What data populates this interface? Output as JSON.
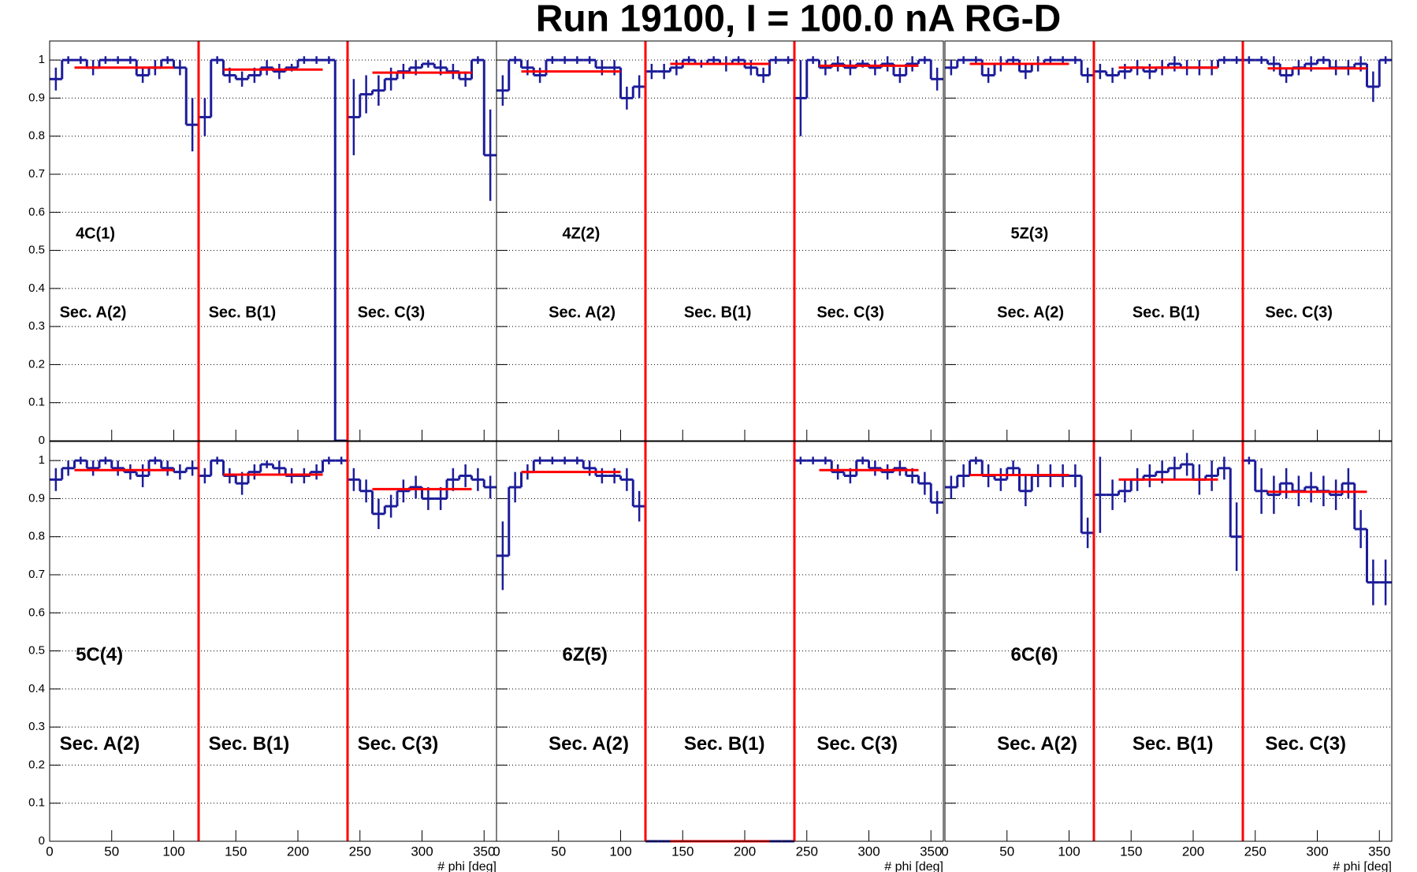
{
  "title": "Run 19100, I = 100.0 nA  RG-D",
  "chart_data": [
    {
      "type": "histogram",
      "label": "4C(1)",
      "sectors": [
        "Sec. A(2)",
        "Sec. B(1)",
        "Sec. C(3)"
      ],
      "bins": [
        0,
        10,
        20,
        30,
        40,
        50,
        60,
        70,
        80,
        90,
        100,
        110,
        120,
        130,
        140,
        150,
        160,
        170,
        180,
        190,
        200,
        210,
        220,
        230,
        240,
        250,
        260,
        270,
        280,
        290,
        300,
        310,
        320,
        330,
        340,
        350,
        360
      ],
      "values": [
        0.95,
        1,
        1,
        0.98,
        1,
        1,
        1,
        0.96,
        0.98,
        1,
        0.98,
        0.83,
        0.85,
        1,
        0.96,
        0.95,
        0.96,
        0.98,
        0.97,
        0.98,
        1,
        1,
        1,
        0,
        0.85,
        0.91,
        0.92,
        0.95,
        0.97,
        0.98,
        0.99,
        0.98,
        0.97,
        0.95,
        1,
        0.75
      ],
      "errors": [
        0.03,
        0.01,
        0.01,
        0.02,
        0.01,
        0.01,
        0.01,
        0.02,
        0.02,
        0.01,
        0.02,
        0.07,
        0.05,
        0.01,
        0.02,
        0.02,
        0.02,
        0.02,
        0.02,
        0.01,
        0.01,
        0.01,
        0.01,
        0,
        0.1,
        0.05,
        0.04,
        0.03,
        0.02,
        0.02,
        0.01,
        0.02,
        0.02,
        0.02,
        0.01,
        0.12
      ],
      "fits": [
        {
          "range": [
            20,
            100
          ],
          "value": 0.98
        },
        {
          "range": [
            140,
            220
          ],
          "value": 0.975
        },
        {
          "range": [
            260,
            340
          ],
          "value": 0.967
        }
      ],
      "boundaries": [
        120,
        240
      ],
      "color": "#1c1c9a",
      "fit_color": "#ff0000",
      "xlim": [
        0,
        360
      ],
      "ylim": [
        0,
        1.05
      ],
      "xticks": [
        0,
        50,
        100,
        150,
        200,
        250,
        300,
        350
      ],
      "yticks": [
        0,
        0.1,
        0.2,
        0.3,
        0.4,
        0.5,
        0.6,
        0.7,
        0.8,
        0.9,
        1
      ],
      "grid": true,
      "show_xtick_labels": false,
      "show_ytick_labels": true
    },
    {
      "type": "histogram",
      "label": "4Z(2)",
      "sectors": [
        "Sec. A(2)",
        "Sec. B(1)",
        "Sec. C(3)"
      ],
      "bins": [
        0,
        10,
        20,
        30,
        40,
        50,
        60,
        70,
        80,
        90,
        100,
        110,
        120,
        130,
        140,
        150,
        160,
        170,
        180,
        190,
        200,
        210,
        220,
        230,
        240,
        250,
        260,
        270,
        280,
        290,
        300,
        310,
        320,
        330,
        340,
        350,
        360
      ],
      "values": [
        0.92,
        1,
        0.98,
        0.96,
        1,
        1,
        1,
        1,
        0.98,
        0.98,
        0.9,
        0.93,
        0.97,
        0.97,
        0.98,
        1,
        0.99,
        1,
        0.99,
        1,
        0.98,
        0.96,
        1,
        1,
        0.9,
        1,
        0.98,
        0.99,
        0.98,
        0.99,
        0.98,
        0.99,
        0.96,
        0.99,
        1,
        0.95
      ],
      "errors": [
        0.04,
        0.01,
        0.02,
        0.02,
        0.01,
        0.01,
        0.01,
        0.01,
        0.02,
        0.02,
        0.03,
        0.03,
        0.02,
        0.02,
        0.02,
        0.01,
        0.01,
        0.01,
        0.02,
        0.01,
        0.02,
        0.02,
        0.01,
        0.01,
        0.1,
        0.01,
        0.02,
        0.02,
        0.02,
        0.01,
        0.02,
        0.02,
        0.02,
        0.02,
        0.01,
        0.03
      ],
      "fits": [
        {
          "range": [
            20,
            100
          ],
          "value": 0.97
        },
        {
          "range": [
            140,
            220
          ],
          "value": 0.99
        },
        {
          "range": [
            260,
            340
          ],
          "value": 0.985
        }
      ],
      "boundaries": [
        120,
        240
      ],
      "color": "#1c1c9a",
      "fit_color": "#ff0000",
      "xlim": [
        0,
        360
      ],
      "ylim": [
        0,
        1.05
      ],
      "xticks": [
        0,
        50,
        100,
        150,
        200,
        250,
        300,
        350
      ],
      "yticks": [
        0,
        0.1,
        0.2,
        0.3,
        0.4,
        0.5,
        0.6,
        0.7,
        0.8,
        0.9,
        1
      ],
      "grid": true,
      "show_xtick_labels": false,
      "show_ytick_labels": false
    },
    {
      "type": "histogram",
      "label": "5Z(3)",
      "sectors": [
        "Sec. A(2)",
        "Sec. B(1)",
        "Sec. C(3)"
      ],
      "bins": [
        0,
        10,
        20,
        30,
        40,
        50,
        60,
        70,
        80,
        90,
        100,
        110,
        120,
        130,
        140,
        150,
        160,
        170,
        180,
        190,
        200,
        210,
        220,
        230,
        240,
        250,
        260,
        270,
        280,
        290,
        300,
        310,
        320,
        330,
        340,
        350,
        360
      ],
      "values": [
        0.98,
        1,
        1,
        0.96,
        0.99,
        1,
        0.97,
        0.99,
        1,
        1,
        1,
        0.96,
        0.97,
        0.96,
        0.97,
        0.98,
        0.97,
        0.98,
        0.99,
        0.98,
        0.98,
        0.98,
        1,
        1,
        1,
        1,
        0.99,
        0.96,
        0.98,
        0.99,
        1,
        0.98,
        0.98,
        0.99,
        0.93,
        1
      ],
      "errors": [
        0.02,
        0.01,
        0.01,
        0.02,
        0.02,
        0.01,
        0.02,
        0.02,
        0.01,
        0.01,
        0.01,
        0.02,
        0.02,
        0.02,
        0.02,
        0.02,
        0.02,
        0.02,
        0.02,
        0.02,
        0.02,
        0.02,
        0.01,
        0.01,
        0.01,
        0.01,
        0.02,
        0.02,
        0.02,
        0.02,
        0.01,
        0.02,
        0.02,
        0.02,
        0.04,
        0.01
      ],
      "fits": [
        {
          "range": [
            20,
            100
          ],
          "value": 0.99
        },
        {
          "range": [
            140,
            220
          ],
          "value": 0.98
        },
        {
          "range": [
            260,
            340
          ],
          "value": 0.978
        }
      ],
      "boundaries": [
        120,
        240
      ],
      "color": "#1c1c9a",
      "fit_color": "#ff0000",
      "xlim": [
        0,
        360
      ],
      "ylim": [
        0,
        1.05
      ],
      "xticks": [
        0,
        50,
        100,
        150,
        200,
        250,
        300,
        350
      ],
      "yticks": [
        0,
        0.1,
        0.2,
        0.3,
        0.4,
        0.5,
        0.6,
        0.7,
        0.8,
        0.9,
        1
      ],
      "grid": true,
      "show_xtick_labels": false,
      "show_ytick_labels": false
    },
    {
      "type": "histogram",
      "label": "5C(4)",
      "sectors": [
        "Sec. A(2)",
        "Sec. B(1)",
        "Sec. C(3)"
      ],
      "bins": [
        0,
        10,
        20,
        30,
        40,
        50,
        60,
        70,
        80,
        90,
        100,
        110,
        120,
        130,
        140,
        150,
        160,
        170,
        180,
        190,
        200,
        210,
        220,
        230,
        240,
        250,
        260,
        270,
        280,
        290,
        300,
        310,
        320,
        330,
        340,
        350,
        360
      ],
      "values": [
        0.95,
        0.98,
        1,
        0.98,
        1,
        0.98,
        0.97,
        0.96,
        1,
        0.98,
        0.97,
        0.98,
        0.96,
        1,
        0.96,
        0.94,
        0.97,
        0.99,
        0.98,
        0.96,
        0.96,
        0.97,
        1,
        1,
        0.95,
        0.92,
        0.86,
        0.88,
        0.92,
        0.93,
        0.9,
        0.9,
        0.95,
        0.96,
        0.95,
        0.93
      ],
      "errors": [
        0.03,
        0.02,
        0.01,
        0.02,
        0.01,
        0.02,
        0.02,
        0.03,
        0.01,
        0.02,
        0.02,
        0.02,
        0.02,
        0.01,
        0.02,
        0.03,
        0.02,
        0.01,
        0.02,
        0.02,
        0.02,
        0.02,
        0.01,
        0.01,
        0.03,
        0.03,
        0.04,
        0.03,
        0.03,
        0.03,
        0.03,
        0.03,
        0.03,
        0.03,
        0.03,
        0.03
      ],
      "fits": [
        {
          "range": [
            20,
            100
          ],
          "value": 0.975
        },
        {
          "range": [
            140,
            220
          ],
          "value": 0.963
        },
        {
          "range": [
            260,
            340
          ],
          "value": 0.925
        }
      ],
      "boundaries": [
        120,
        240
      ],
      "color": "#1c1c9a",
      "fit_color": "#ff0000",
      "xlim": [
        0,
        360
      ],
      "ylim": [
        0,
        1.05
      ],
      "xticks": [
        0,
        50,
        100,
        150,
        200,
        250,
        300,
        350
      ],
      "yticks": [
        0,
        0.1,
        0.2,
        0.3,
        0.4,
        0.5,
        0.6,
        0.7,
        0.8,
        0.9,
        1
      ],
      "x_label": "# phi [deg]",
      "grid": true,
      "show_xtick_labels": true,
      "show_ytick_labels": true
    },
    {
      "type": "histogram",
      "label": "6Z(5)",
      "sectors": [
        "Sec. A(2)",
        "Sec. B(1)",
        "Sec. C(3)"
      ],
      "bins": [
        0,
        10,
        20,
        30,
        40,
        50,
        60,
        70,
        80,
        90,
        100,
        110,
        120,
        130,
        140,
        150,
        160,
        170,
        180,
        190,
        200,
        210,
        220,
        230,
        240,
        250,
        260,
        270,
        280,
        290,
        300,
        310,
        320,
        330,
        340,
        350,
        360
      ],
      "values": [
        0.75,
        0.93,
        0.97,
        1,
        1,
        1,
        1,
        0.98,
        0.96,
        0.96,
        0.95,
        0.88,
        0,
        0,
        0,
        0,
        0,
        0,
        0,
        0,
        0,
        0,
        0,
        0,
        1,
        1,
        1,
        0.97,
        0.96,
        1,
        0.98,
        0.97,
        0.98,
        0.96,
        0.94,
        0.89
      ],
      "errors": [
        0.09,
        0.04,
        0.02,
        0.01,
        0.01,
        0.01,
        0.01,
        0.02,
        0.02,
        0.02,
        0.03,
        0.04,
        0,
        0,
        0,
        0,
        0,
        0,
        0,
        0,
        0,
        0,
        0,
        0,
        0.01,
        0.01,
        0.01,
        0.02,
        0.02,
        0.01,
        0.02,
        0.02,
        0.02,
        0.02,
        0.03,
        0.03
      ],
      "fits": [
        {
          "range": [
            20,
            100
          ],
          "value": 0.97
        },
        {
          "range": [
            140,
            220
          ],
          "value": 0
        },
        {
          "range": [
            260,
            340
          ],
          "value": 0.975
        }
      ],
      "boundaries": [
        120,
        240
      ],
      "color": "#1c1c9a",
      "fit_color": "#ff0000",
      "xlim": [
        0,
        360
      ],
      "ylim": [
        0,
        1.05
      ],
      "xticks": [
        0,
        50,
        100,
        150,
        200,
        250,
        300,
        350
      ],
      "yticks": [
        0,
        0.1,
        0.2,
        0.3,
        0.4,
        0.5,
        0.6,
        0.7,
        0.8,
        0.9,
        1
      ],
      "x_label": "# phi [deg]",
      "grid": true,
      "show_xtick_labels": true,
      "show_ytick_labels": false
    },
    {
      "type": "histogram",
      "label": "6C(6)",
      "sectors": [
        "Sec. A(2)",
        "Sec. B(1)",
        "Sec. C(3)"
      ],
      "bins": [
        0,
        10,
        20,
        30,
        40,
        50,
        60,
        70,
        80,
        90,
        100,
        110,
        120,
        130,
        140,
        150,
        160,
        170,
        180,
        190,
        200,
        210,
        220,
        230,
        240,
        250,
        260,
        270,
        280,
        290,
        300,
        310,
        320,
        330,
        340,
        350,
        360
      ],
      "values": [
        0.93,
        0.96,
        1,
        0.96,
        0.95,
        0.98,
        0.92,
        0.96,
        0.96,
        0.96,
        0.96,
        0.81,
        0.91,
        0.91,
        0.92,
        0.95,
        0.96,
        0.97,
        0.98,
        0.99,
        0.95,
        0.96,
        0.98,
        0.8,
        1,
        0.92,
        0.91,
        0.94,
        0.92,
        0.93,
        0.92,
        0.91,
        0.94,
        0.82,
        0.68,
        0.68
      ],
      "errors": [
        0.03,
        0.03,
        0.01,
        0.03,
        0.03,
        0.02,
        0.04,
        0.03,
        0.03,
        0.03,
        0.03,
        0.04,
        0.1,
        0.04,
        0.03,
        0.03,
        0.03,
        0.03,
        0.03,
        0.03,
        0.04,
        0.04,
        0.03,
        0.09,
        0.01,
        0.06,
        0.05,
        0.04,
        0.04,
        0.04,
        0.04,
        0.04,
        0.04,
        0.05,
        0.06,
        0.06
      ],
      "fits": [
        {
          "range": [
            20,
            100
          ],
          "value": 0.962
        },
        {
          "range": [
            140,
            220
          ],
          "value": 0.95
        },
        {
          "range": [
            260,
            340
          ],
          "value": 0.918
        }
      ],
      "boundaries": [
        120,
        240
      ],
      "color": "#1c1c9a",
      "fit_color": "#ff0000",
      "xlim": [
        0,
        360
      ],
      "ylim": [
        0,
        1.05
      ],
      "xticks": [
        0,
        50,
        100,
        150,
        200,
        250,
        300,
        350
      ],
      "yticks": [
        0,
        0.1,
        0.2,
        0.3,
        0.4,
        0.5,
        0.6,
        0.7,
        0.8,
        0.9,
        1
      ],
      "x_label": "# phi [deg]",
      "grid": true,
      "show_xtick_labels": true,
      "show_ytick_labels": false
    }
  ]
}
